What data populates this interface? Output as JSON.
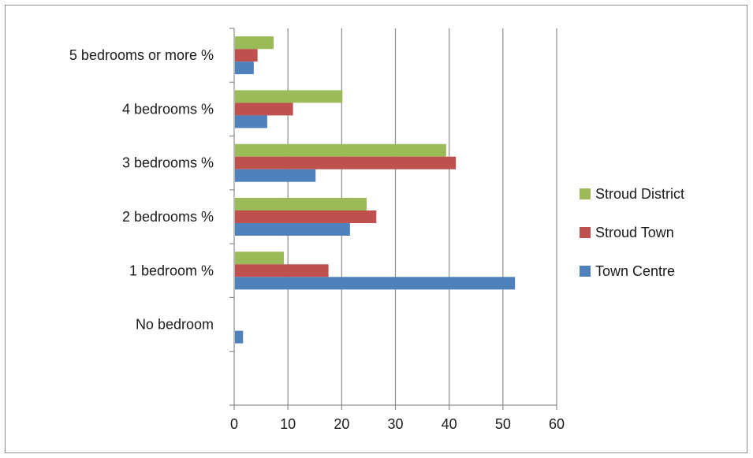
{
  "chart_data": {
    "type": "bar",
    "orientation": "horizontal",
    "title": "",
    "xlabel": "",
    "ylabel": "",
    "xlim": [
      0,
      60
    ],
    "x_ticks": [
      0,
      10,
      20,
      30,
      40,
      50,
      60
    ],
    "grid": "vertical major gridlines",
    "legend_position": "right",
    "categories": [
      "5 bedrooms or more %",
      "4 bedrooms %",
      "3 bedrooms %",
      "2 bedrooms %",
      "1 bedroom %",
      "No bedroom",
      ""
    ],
    "series": [
      {
        "name": "Stroud District",
        "color": "#9bbb59",
        "values": [
          7.2,
          20.0,
          39.3,
          24.5,
          9.1,
          0.0,
          null
        ]
      },
      {
        "name": "Stroud Town",
        "color": "#c0504d",
        "values": [
          4.2,
          10.8,
          41.1,
          26.3,
          17.4,
          0.0,
          null
        ]
      },
      {
        "name": "Town Centre",
        "color": "#4f81bd",
        "values": [
          3.5,
          6.0,
          15.0,
          21.4,
          52.1,
          1.5,
          null
        ]
      }
    ]
  }
}
